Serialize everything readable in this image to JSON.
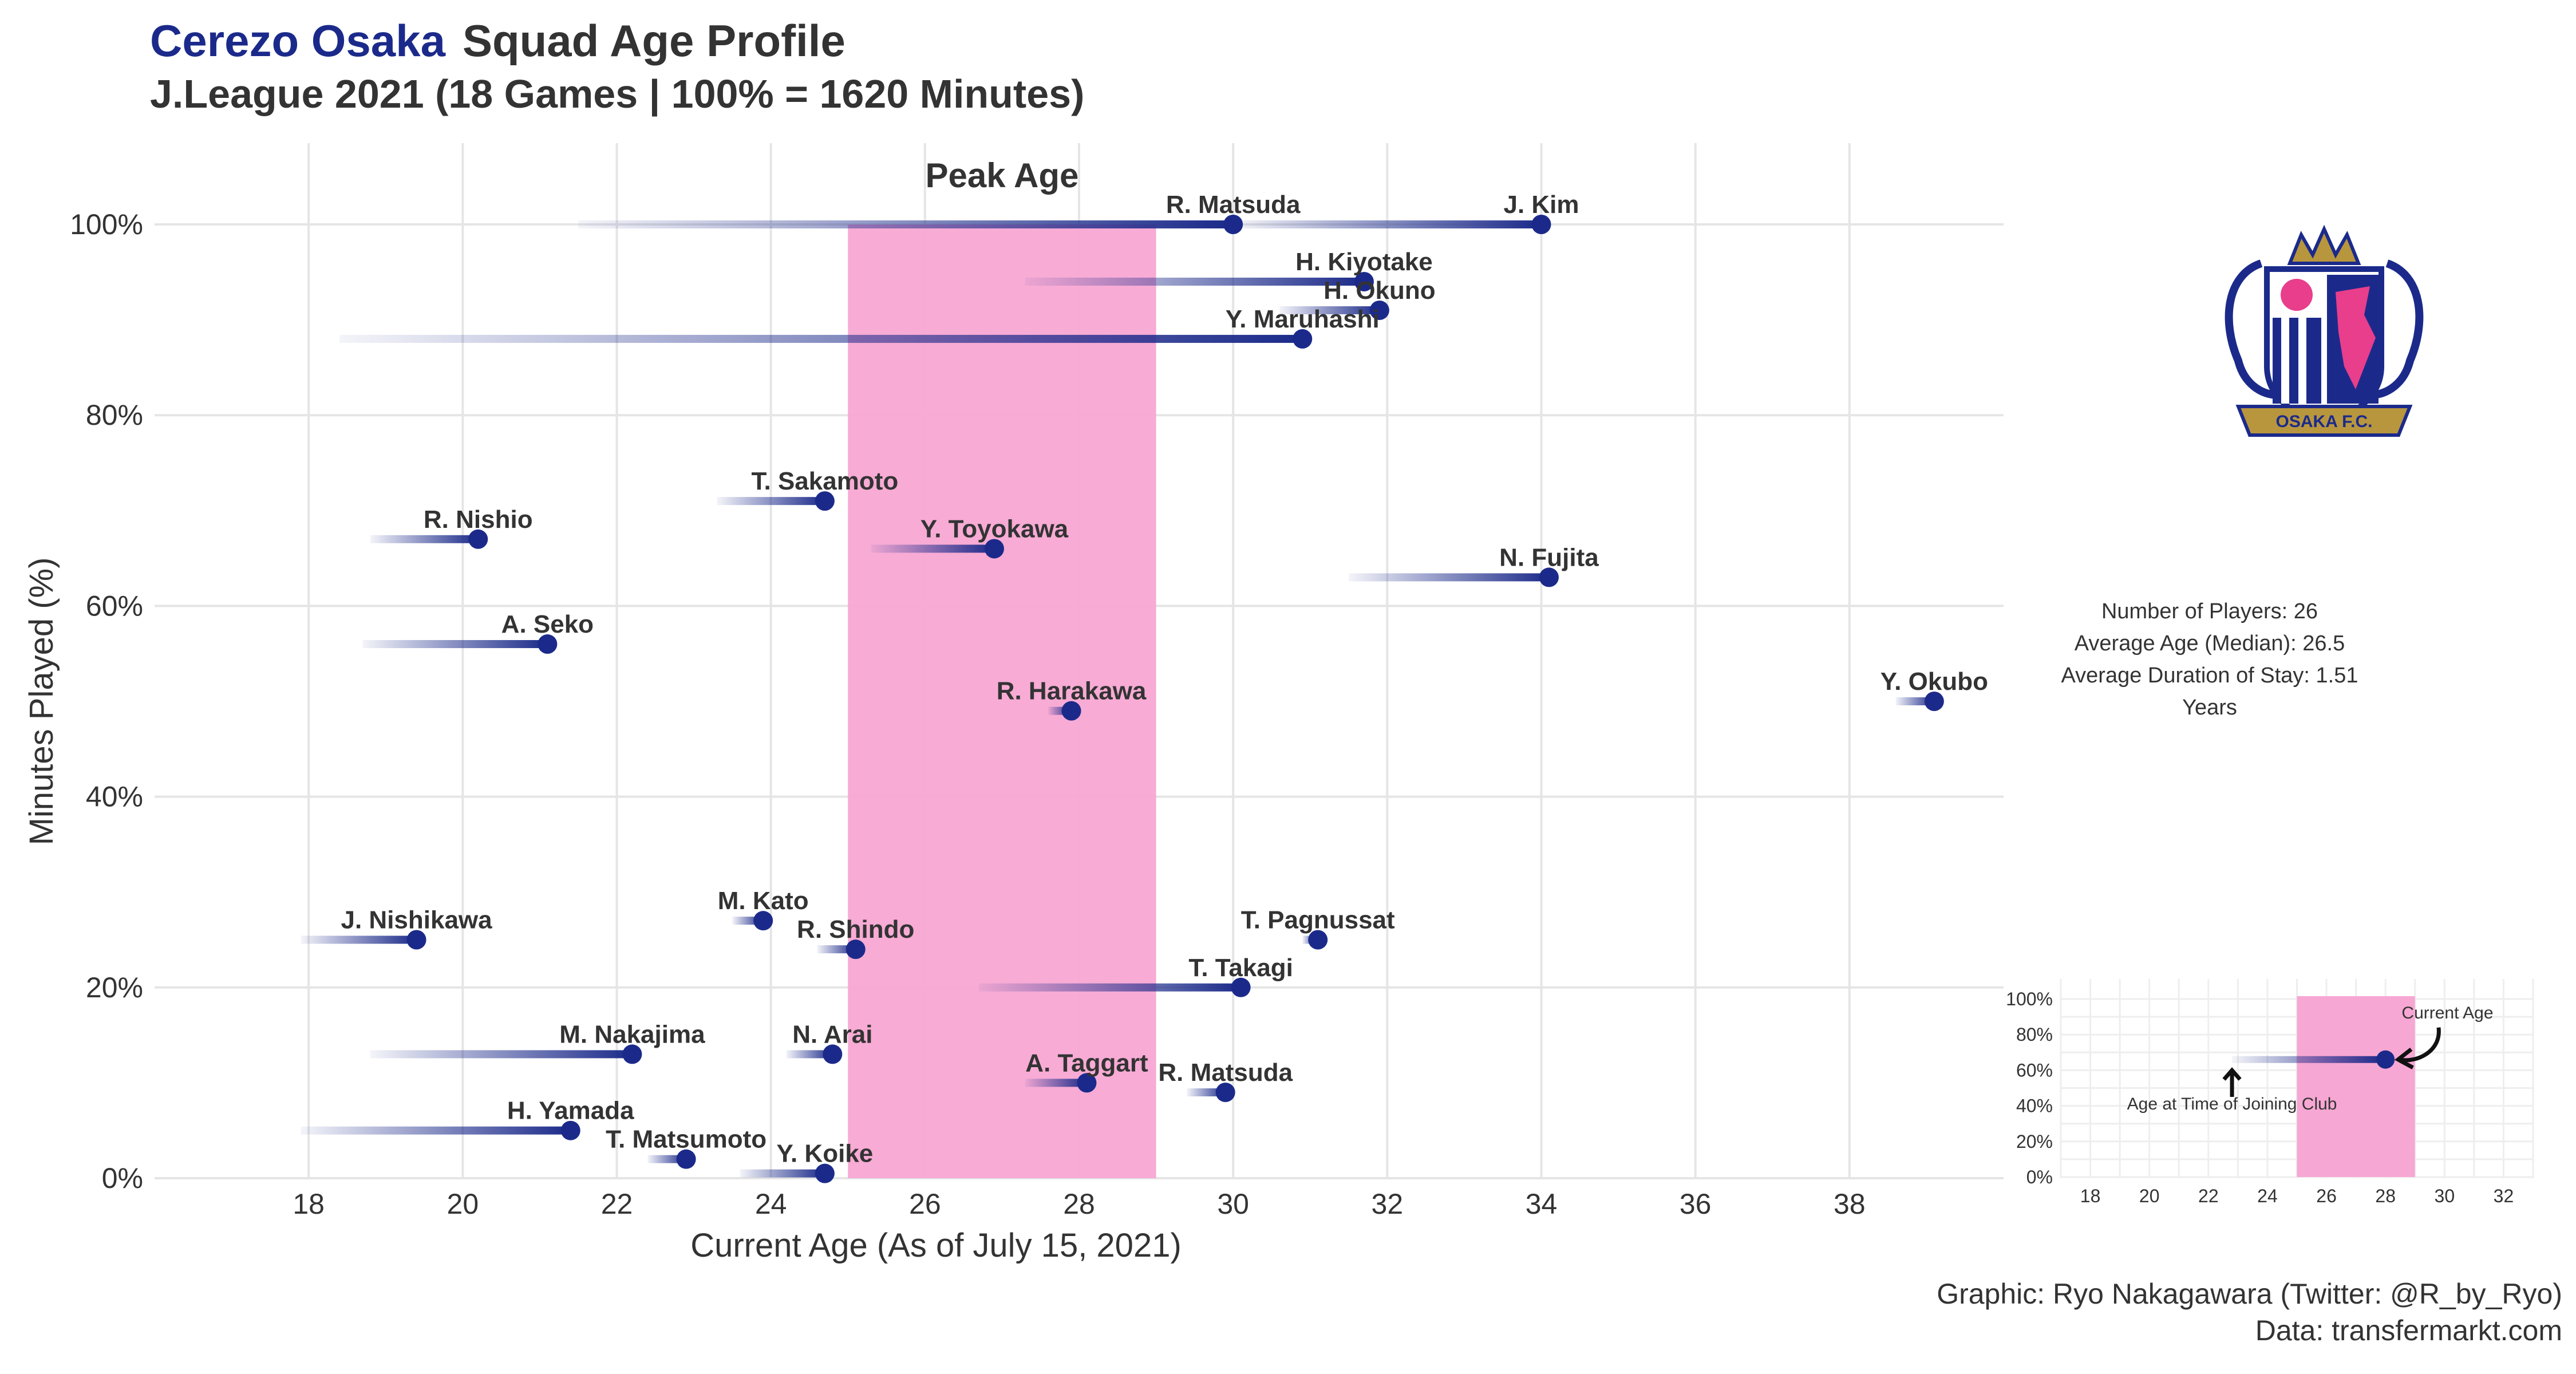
{
  "title": {
    "club": "Cerezo Osaka",
    "rest": "Squad Age Profile"
  },
  "subtitle": "J.League 2021 (18 Games | 100% = 1620 Minutes)",
  "colors": {
    "navy": "#1b2a8a",
    "peak": "#f7a7d3",
    "grid": "#e5e5e5",
    "text": "#333333"
  },
  "stats": [
    "Number of Players: 26",
    "Average Age (Median): 26.5",
    "Average Duration of Stay: 1.51 Years"
  ],
  "caption": [
    "Graphic: Ryo Nakagawara (Twitter: @R_by_Ryo)",
    "Data: transfermarkt.com"
  ],
  "logo": {
    "name": "cerezo-osaka-crest",
    "text": "OSAKA F.C."
  },
  "chart_data": [
    {
      "type": "scatter",
      "title": "",
      "xlabel": "Current Age (As of July 15, 2021)",
      "ylabel": "Minutes Played (%)",
      "xlim": [
        16,
        40
      ],
      "ylim": [
        0,
        100
      ],
      "xticks": [
        18,
        20,
        22,
        24,
        26,
        28,
        30,
        32,
        34,
        36,
        38
      ],
      "yticks": [
        0,
        20,
        40,
        60,
        80,
        100
      ],
      "ytick_labels": [
        "0%",
        "20%",
        "40%",
        "60%",
        "80%",
        "100%"
      ],
      "grid": true,
      "peak_band": {
        "label": "Peak Age",
        "from": 25,
        "to": 29
      },
      "players": [
        {
          "name": "R. Matsuda",
          "age_joined": 21.5,
          "age": 30.0,
          "minutes_pct": 100
        },
        {
          "name": "J. Kim",
          "age_joined": 30.0,
          "age": 34.0,
          "minutes_pct": 100
        },
        {
          "name": "H. Kiyotake",
          "age_joined": 27.3,
          "age": 31.7,
          "minutes_pct": 94
        },
        {
          "name": "H. Okuno",
          "age_joined": 30.6,
          "age": 31.9,
          "minutes_pct": 91
        },
        {
          "name": "Y. Maruhashi",
          "age_joined": 18.4,
          "age": 30.9,
          "minutes_pct": 88
        },
        {
          "name": "T. Sakamoto",
          "age_joined": 23.3,
          "age": 24.7,
          "minutes_pct": 71
        },
        {
          "name": "R. Nishio",
          "age_joined": 18.8,
          "age": 20.2,
          "minutes_pct": 67
        },
        {
          "name": "Y. Toyokawa",
          "age_joined": 25.3,
          "age": 26.9,
          "minutes_pct": 66
        },
        {
          "name": "N. Fujita",
          "age_joined": 31.5,
          "age": 34.1,
          "minutes_pct": 63
        },
        {
          "name": "A. Seko",
          "age_joined": 18.7,
          "age": 21.1,
          "minutes_pct": 56
        },
        {
          "name": "Y. Okubo",
          "age_joined": 38.6,
          "age": 39.1,
          "minutes_pct": 50
        },
        {
          "name": "R. Harakawa",
          "age_joined": 27.6,
          "age": 27.9,
          "minutes_pct": 49
        },
        {
          "name": "J. Nishikawa",
          "age_joined": 17.9,
          "age": 19.4,
          "minutes_pct": 25
        },
        {
          "name": "M. Kato",
          "age_joined": 23.5,
          "age": 23.9,
          "minutes_pct": 27
        },
        {
          "name": "R. Shindo",
          "age_joined": 24.6,
          "age": 25.1,
          "minutes_pct": 24
        },
        {
          "name": "T. Pagnussat",
          "age_joined": 30.9,
          "age": 31.1,
          "minutes_pct": 25
        },
        {
          "name": "T. Takagi",
          "age_joined": 26.7,
          "age": 30.1,
          "minutes_pct": 20
        },
        {
          "name": "M. Nakajima",
          "age_joined": 18.8,
          "age": 22.2,
          "minutes_pct": 13
        },
        {
          "name": "N. Arai",
          "age_joined": 24.2,
          "age": 24.8,
          "minutes_pct": 13
        },
        {
          "name": "A. Taggart",
          "age_joined": 27.3,
          "age": 28.1,
          "minutes_pct": 10
        },
        {
          "name": "R. Matsuda",
          "age_joined": 29.4,
          "age": 29.9,
          "minutes_pct": 9
        },
        {
          "name": "H. Yamada",
          "age_joined": 17.9,
          "age": 21.4,
          "minutes_pct": 5
        },
        {
          "name": "T. Matsumoto",
          "age_joined": 22.4,
          "age": 22.9,
          "minutes_pct": 2
        },
        {
          "name": "Y. Koike",
          "age_joined": 23.6,
          "age": 24.7,
          "minutes_pct": 0.5
        }
      ]
    },
    {
      "type": "scatter",
      "title": "",
      "xlim": [
        17,
        33
      ],
      "ylim": [
        0,
        100
      ],
      "xticks": [
        18,
        20,
        22,
        24,
        26,
        28,
        30,
        32
      ],
      "yticks": [
        0,
        20,
        40,
        60,
        80,
        100
      ],
      "ytick_labels": [
        "0%",
        "20%",
        "40%",
        "60%",
        "80%",
        "100%"
      ],
      "grid": true,
      "peak_band": {
        "from": 25,
        "to": 29
      },
      "players": [
        {
          "age_joined": 22.8,
          "age": 28.0,
          "minutes_pct": 66
        }
      ],
      "annotations": [
        {
          "text": "Current Age"
        },
        {
          "text": "Age at Time of Joining Club"
        }
      ]
    }
  ]
}
